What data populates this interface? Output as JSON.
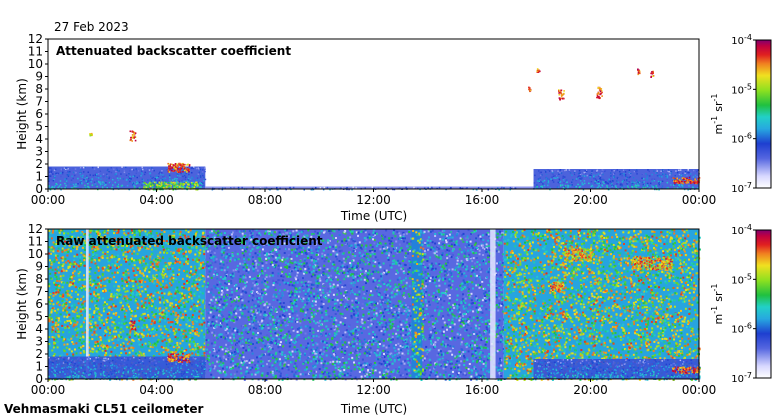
{
  "date_label": "27 Feb 2023",
  "instrument_label": "Vehmasmaki CL51 ceilometer",
  "colorbar": {
    "unit_base": "m",
    "unit_base_exp": "-1",
    "unit_sr": "sr",
    "unit_sr_exp": "-1",
    "tick_base": "10",
    "tick_exponents": [
      "-4",
      "-5",
      "-6",
      "-7"
    ]
  },
  "colors": {
    "background": "#ffffff",
    "frame": "#000000",
    "scale": [
      "#ffffff",
      "#d8d8ff",
      "#5566e0",
      "#1e3fd0",
      "#27a8e0",
      "#22d0c8",
      "#20c040",
      "#8ee020",
      "#f0e020",
      "#f08020",
      "#e02020",
      "#c00040",
      "#800070"
    ]
  },
  "chart_data": [
    {
      "type": "heatmap",
      "title": "Attenuated backscatter coefficient",
      "xlabel": "Time (UTC)",
      "ylabel": "Height (km)",
      "xticks": [
        "00:00",
        "04:00",
        "08:00",
        "12:00",
        "16:00",
        "20:00",
        "00:00"
      ],
      "yticks": [
        "0",
        "1",
        "2",
        "3",
        "4",
        "5",
        "6",
        "7",
        "8",
        "9",
        "10",
        "11",
        "12"
      ],
      "xlim_hours": [
        0,
        24
      ],
      "ylim_km": [
        0,
        12
      ],
      "color_scale": "log",
      "clim": [
        1e-07,
        0.0001
      ],
      "features": [
        {
          "kind": "boundary_layer",
          "hours": [
            0,
            5.8
          ],
          "top_km": 1.8,
          "level": 0.3
        },
        {
          "kind": "boundary_layer",
          "hours": [
            17.9,
            24
          ],
          "top_km": 1.6,
          "level": 0.3
        },
        {
          "kind": "surface_layer",
          "hours": [
            5.8,
            17.9
          ],
          "top_km": 0.2,
          "level": 0.2
        },
        {
          "kind": "aerosol",
          "hours": [
            3.5,
            5.5
          ],
          "km": [
            0,
            0.6
          ],
          "level": 0.55
        },
        {
          "kind": "cloud",
          "hours": [
            3.0,
            3.2
          ],
          "km": [
            3.9,
            4.7
          ],
          "level": 0.8
        },
        {
          "kind": "cloud",
          "hours": [
            4.4,
            5.2
          ],
          "km": [
            1.4,
            2.1
          ],
          "level": 0.8
        },
        {
          "kind": "cloud",
          "hours": [
            1.5,
            1.6
          ],
          "km": [
            4.3,
            4.5
          ],
          "level": 0.7
        },
        {
          "kind": "cloud",
          "hours": [
            17.7,
            17.8
          ],
          "km": [
            7.8,
            8.2
          ],
          "level": 0.8
        },
        {
          "kind": "cloud",
          "hours": [
            18.0,
            18.1
          ],
          "km": [
            9.4,
            9.7
          ],
          "level": 0.8
        },
        {
          "kind": "cloud",
          "hours": [
            18.8,
            19.0
          ],
          "km": [
            7.2,
            8.0
          ],
          "level": 0.8
        },
        {
          "kind": "cloud",
          "hours": [
            20.2,
            20.4
          ],
          "km": [
            7.3,
            8.2
          ],
          "level": 0.8
        },
        {
          "kind": "cloud",
          "hours": [
            21.7,
            21.8
          ],
          "km": [
            9.2,
            9.7
          ],
          "level": 0.8
        },
        {
          "kind": "cloud",
          "hours": [
            22.2,
            22.3
          ],
          "km": [
            9.0,
            9.5
          ],
          "level": 0.8
        },
        {
          "kind": "cloud",
          "hours": [
            23.0,
            24.0
          ],
          "km": [
            0.5,
            1.0
          ],
          "level": 0.8
        }
      ]
    },
    {
      "type": "heatmap",
      "title": "Raw attenuated backscatter coefficient",
      "xlabel": "Time (UTC)",
      "ylabel": "Height (km)",
      "xticks": [
        "00:00",
        "04:00",
        "08:00",
        "12:00",
        "16:00",
        "20:00",
        "00:00"
      ],
      "yticks": [
        "0",
        "1",
        "2",
        "3",
        "4",
        "5",
        "6",
        "7",
        "8",
        "9",
        "10",
        "11",
        "12"
      ],
      "xlim_hours": [
        0,
        24
      ],
      "ylim_km": [
        0,
        12
      ],
      "color_scale": "log",
      "clim": [
        1e-07,
        0.0001
      ],
      "features": [
        {
          "kind": "noise_background",
          "hours": [
            0,
            5.8
          ],
          "km": [
            0,
            12
          ],
          "level": 0.6
        },
        {
          "kind": "noise_background",
          "hours": [
            5.8,
            16.8
          ],
          "km": [
            0,
            12
          ],
          "level": 0.3
        },
        {
          "kind": "noise_background",
          "hours": [
            16.8,
            24
          ],
          "km": [
            0,
            12
          ],
          "level": 0.6
        },
        {
          "kind": "noise_streak",
          "hours": [
            13.4,
            13.8
          ],
          "km": [
            0,
            12
          ],
          "level": 0.55
        },
        {
          "kind": "gap",
          "hours": [
            1.4,
            1.5
          ],
          "km": [
            0,
            12
          ],
          "level": 0.05
        },
        {
          "kind": "gap",
          "hours": [
            16.3,
            16.5
          ],
          "km": [
            0,
            12
          ],
          "level": 0.05
        },
        {
          "kind": "boundary_layer",
          "hours": [
            0,
            5.8
          ],
          "top_km": 1.8,
          "level": 0.3
        },
        {
          "kind": "boundary_layer",
          "hours": [
            17.9,
            24
          ],
          "top_km": 1.6,
          "level": 0.3
        },
        {
          "kind": "cloud",
          "hours": [
            3.0,
            3.2
          ],
          "km": [
            3.9,
            4.7
          ],
          "level": 0.8
        },
        {
          "kind": "cloud",
          "hours": [
            4.4,
            5.2
          ],
          "km": [
            1.4,
            2.1
          ],
          "level": 0.8
        },
        {
          "kind": "cloud",
          "hours": [
            18.5,
            19.0
          ],
          "km": [
            7.0,
            7.8
          ],
          "level": 0.75
        },
        {
          "kind": "cloud",
          "hours": [
            21.5,
            23.0
          ],
          "km": [
            8.8,
            9.8
          ],
          "level": 0.72
        },
        {
          "kind": "cloud",
          "hours": [
            19.0,
            20.0
          ],
          "km": [
            9.5,
            10.5
          ],
          "level": 0.7
        },
        {
          "kind": "cloud",
          "hours": [
            23.0,
            24.0
          ],
          "km": [
            0.5,
            1.0
          ],
          "level": 0.8
        }
      ]
    }
  ]
}
